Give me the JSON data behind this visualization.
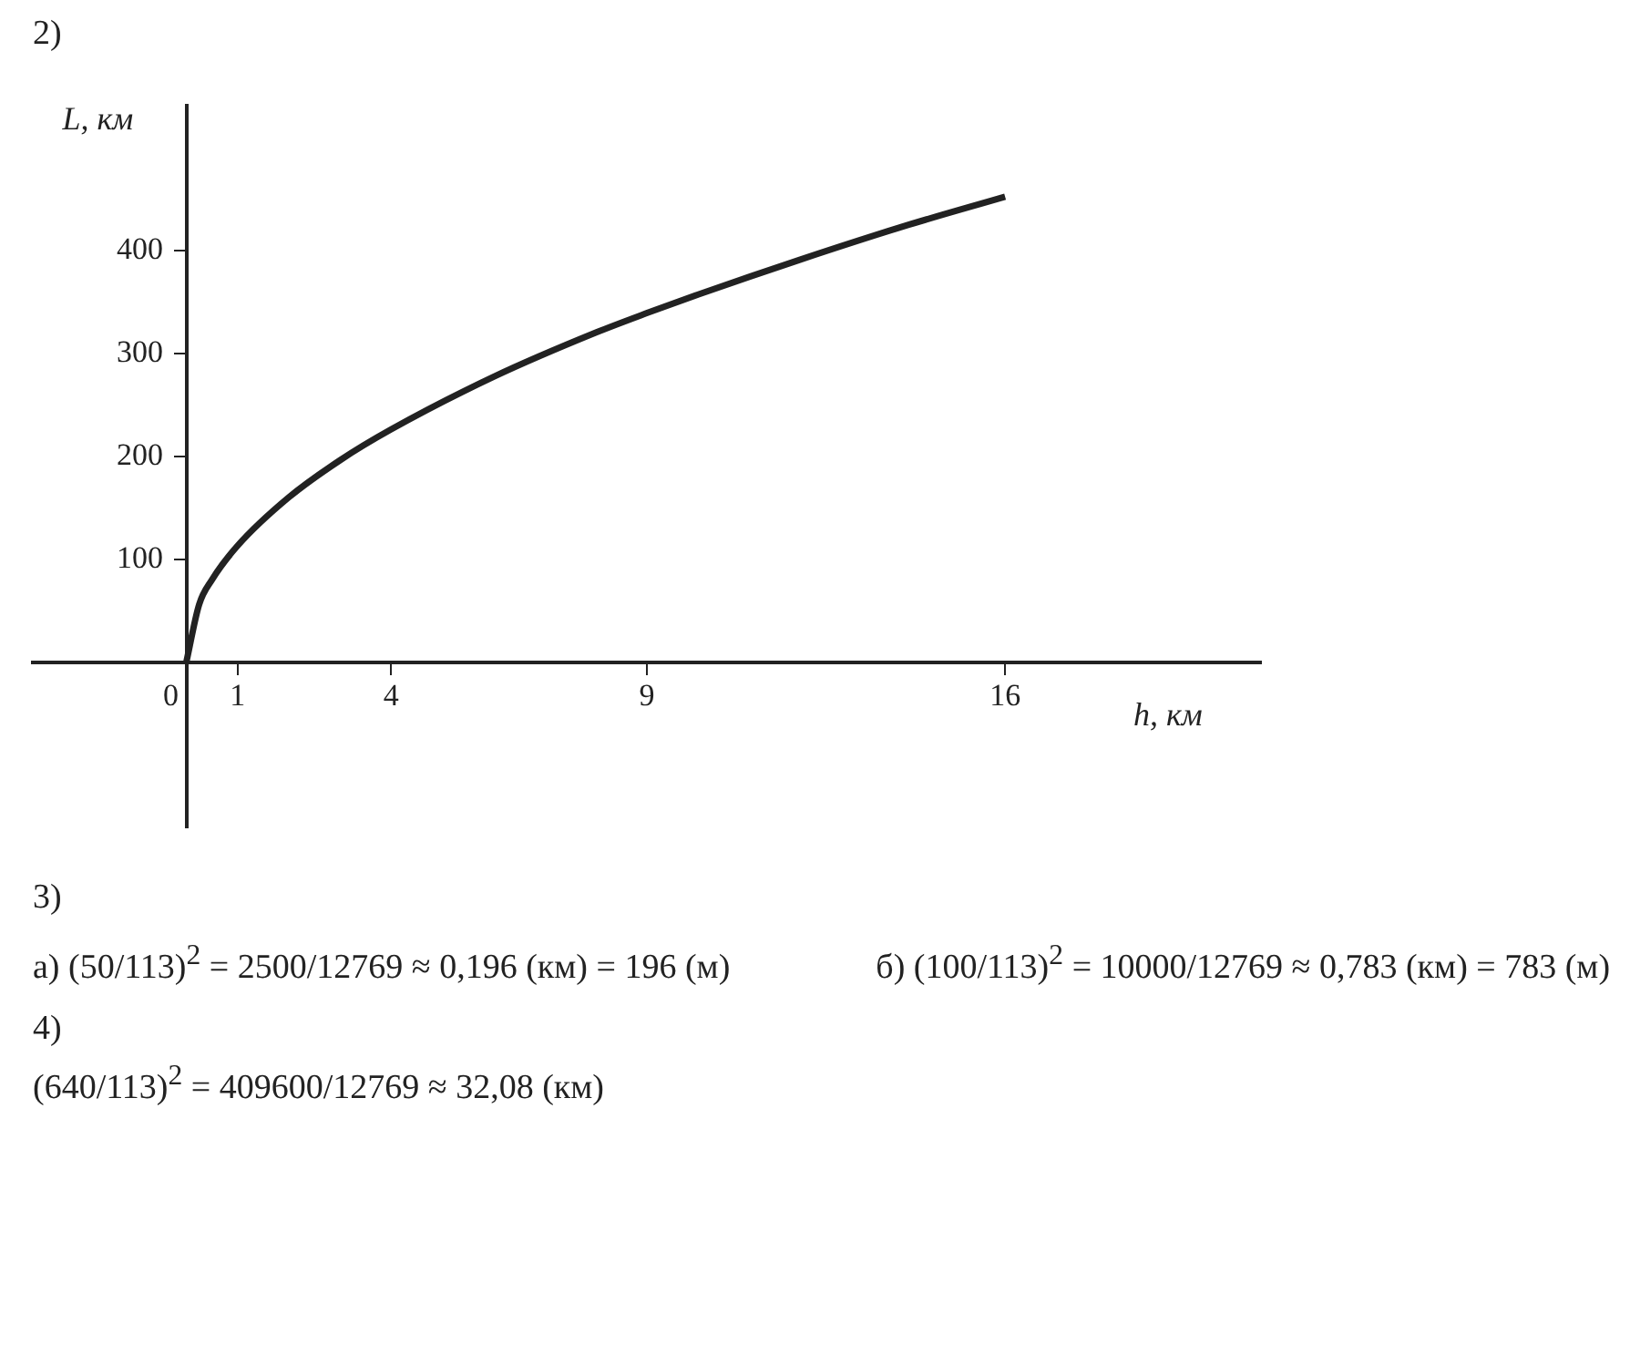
{
  "chart_data": {
    "type": "line",
    "xlabel": "h, км",
    "ylabel": "L, км",
    "x": [
      0,
      0.25,
      0.5,
      1,
      2,
      3,
      4,
      6,
      8,
      9,
      10,
      12,
      14,
      16
    ],
    "series": [
      {
        "color": "#222222",
        "values": [
          0,
          56,
          80,
          113,
          160,
          196,
          226,
          277,
          320,
          339,
          357,
          391,
          423,
          452
        ]
      }
    ],
    "xlim": [
      -3,
      21
    ],
    "ylim": [
      -160,
      540
    ],
    "xticks": [
      0,
      1,
      4,
      9,
      16
    ],
    "yticks": [
      100,
      200,
      300,
      400
    ],
    "grid": false,
    "legend": false,
    "marker": "none",
    "line_style": "solid",
    "annotations": [
      "2)",
      "3)",
      "а) (50/113)$^{2}$ = 2500/12769 ≈ 0,196 (км) = 196 (м)",
      "б) (100/113)$^{2}$ = 10000/12769 ≈ 0,783 (км) = 783 (м)",
      "4)",
      "(640/113)$^{2}$ = 409600/12769 ≈ 32,08 (км)"
    ]
  }
}
